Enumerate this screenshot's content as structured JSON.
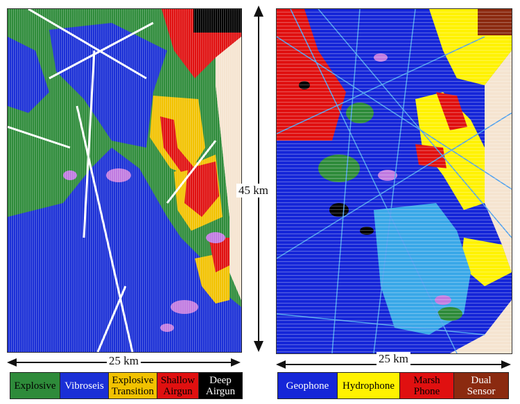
{
  "scale": {
    "left_label": "25 km",
    "right_label": "25 km",
    "vertical_label": "45 km"
  },
  "legend_left": [
    {
      "label": "Explosive",
      "color": "#2e8b3a",
      "text_color": "#000000"
    },
    {
      "label": "Vibroseis",
      "color": "#1a2fd6",
      "text_color": "#ffffff"
    },
    {
      "label": "Explosive\nTransition",
      "color": "#f2c200",
      "text_color": "#000000"
    },
    {
      "label": "Shallow\nAirgun",
      "color": "#e01010",
      "text_color": "#000000"
    },
    {
      "label": "Deep\nAirgun",
      "color": "#000000",
      "text_color": "#ffffff"
    }
  ],
  "legend_right": [
    {
      "label": "Geophone",
      "color": "#1526d8",
      "text_color": "#ffffff"
    },
    {
      "label": "Hydrophone",
      "color": "#fff200",
      "text_color": "#000000"
    },
    {
      "label": "Marsh\nPhone",
      "color": "#e01010",
      "text_color": "#000000"
    },
    {
      "label": "Dual\nSensor",
      "color": "#8b2a10",
      "text_color": "#ffffff"
    }
  ],
  "map_colors": {
    "background": "#f5e4d0",
    "explosive": "#2e8b3a",
    "vibroseis": "#1a2fd6",
    "explosive_transition": "#f2c200",
    "shallow_airgun": "#e01010",
    "deep_airgun": "#000000",
    "geophone": "#1526d8",
    "hydrophone": "#fff200",
    "marsh_phone": "#e01010",
    "dual_sensor": "#8b2a10",
    "light_blue": "#3aa8e8",
    "violet": "#c07ae0"
  }
}
